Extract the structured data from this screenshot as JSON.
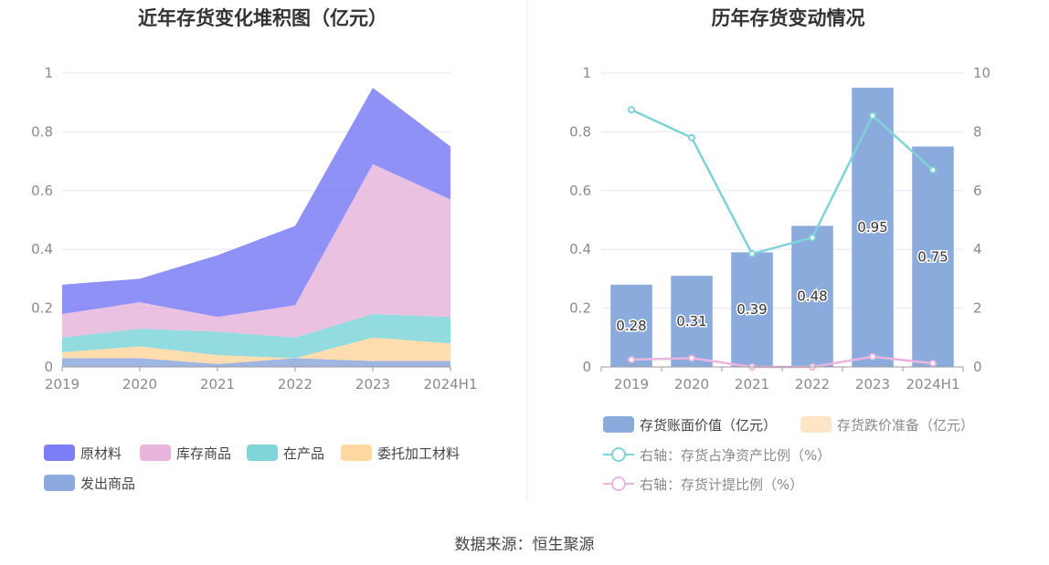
{
  "source": "数据来源：恒生聚源",
  "colors": {
    "raw_materials": "#7b7ef6",
    "inventory_goods": "#e8b6dc",
    "in_production": "#7fd5d8",
    "consigned": "#ffd7a0",
    "dispatched": "#8ea9de",
    "bar": "#8aabdb",
    "provision_legend": "#fde5c5",
    "line_ratio": "#7fd3d8",
    "line_provision": "#eab6e0",
    "grid": "#e6e6f3",
    "axis": "#999999"
  },
  "chart_data": [
    {
      "type": "area",
      "stacked": true,
      "title": "近年存货变化堆积图（亿元）",
      "categories": [
        "2019",
        "2020",
        "2021",
        "2022",
        "2023",
        "2024H1"
      ],
      "y_ticks": [
        "0",
        "0.2",
        "0.4",
        "0.6",
        "0.8",
        "1"
      ],
      "ylim": [
        0,
        1
      ],
      "grid": true,
      "legend_position": "bottom",
      "series": [
        {
          "name": "发出商品",
          "color_key": "dispatched",
          "values": [
            0.03,
            0.03,
            0.01,
            0.03,
            0.02,
            0.02
          ]
        },
        {
          "name": "委托加工材料",
          "color_key": "consigned",
          "values": [
            0.02,
            0.04,
            0.03,
            0.0,
            0.08,
            0.06
          ]
        },
        {
          "name": "在产品",
          "color_key": "in_production",
          "values": [
            0.05,
            0.06,
            0.08,
            0.07,
            0.08,
            0.09
          ]
        },
        {
          "name": "库存商品",
          "color_key": "inventory_goods",
          "values": [
            0.08,
            0.09,
            0.05,
            0.11,
            0.51,
            0.4
          ]
        },
        {
          "name": "原材料",
          "color_key": "raw_materials",
          "values": [
            0.1,
            0.08,
            0.21,
            0.27,
            0.26,
            0.18
          ]
        }
      ]
    },
    {
      "type": "bar",
      "title": "历年存货变动情况",
      "categories": [
        "2019",
        "2020",
        "2021",
        "2022",
        "2023",
        "2024H1"
      ],
      "y_ticks_left": [
        "0",
        "0.2",
        "0.4",
        "0.6",
        "0.8",
        "1"
      ],
      "y_ticks_right": [
        "0",
        "2",
        "4",
        "6",
        "8",
        "10"
      ],
      "ylim_left": [
        0,
        1
      ],
      "ylim_right": [
        0,
        10
      ],
      "grid": true,
      "legend_position": "bottom",
      "bars": [
        {
          "name": "存货账面价值（亿元）",
          "color_key": "bar",
          "values": [
            0.28,
            0.31,
            0.39,
            0.48,
            0.95,
            0.75
          ],
          "labels": [
            "0.28",
            "0.31",
            "0.39",
            "0.48",
            "0.95",
            "0.75"
          ]
        },
        {
          "name": "存货跌价准备（亿元）",
          "color_key": "provision_legend",
          "values": [
            0,
            0,
            0,
            0,
            0,
            0
          ]
        }
      ],
      "lines": [
        {
          "name": "右轴：存货占净资产比例（%）",
          "color_key": "line_ratio",
          "axis": "right",
          "values": [
            8.75,
            7.8,
            3.85,
            4.4,
            8.55,
            6.7
          ]
        },
        {
          "name": "右轴：存货计提比例（%）",
          "color_key": "line_provision",
          "axis": "right",
          "values": [
            0.25,
            0.3,
            0.0,
            0.0,
            0.35,
            0.12
          ]
        }
      ]
    }
  ]
}
